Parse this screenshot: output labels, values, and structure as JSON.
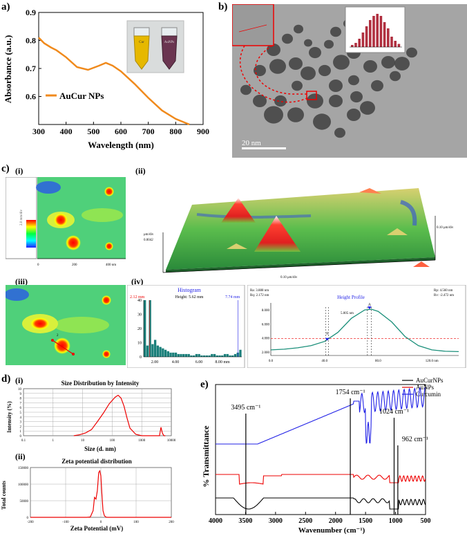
{
  "panels": {
    "a": "a)",
    "b": "b)",
    "c": "c)",
    "d": "d)",
    "e": "e)"
  },
  "subpanels": {
    "c_i": "(i)",
    "c_ii": "(ii)",
    "c_iii": "(iii)",
    "c_iv": "(iv)",
    "d_i": "(i)",
    "d_ii": "(ii)"
  },
  "chart_data": [
    {
      "id": "uvvis",
      "type": "line",
      "xlabel": "Wavelength (nm)",
      "ylabel": "Absorbance (a.u.)",
      "xlim": [
        300,
        900
      ],
      "ylim": [
        0.5,
        0.9
      ],
      "xticks": [
        300,
        400,
        500,
        600,
        700,
        800,
        900
      ],
      "yticks": [
        0.6,
        0.7,
        0.8,
        0.9
      ],
      "legend": "AuCur NPs",
      "legend_position": "center-left",
      "color": "#f08a1c",
      "x": [
        300,
        320,
        345,
        365,
        400,
        440,
        480,
        520,
        545,
        570,
        600,
        650,
        700,
        750,
        800,
        850
      ],
      "y": [
        0.81,
        0.79,
        0.775,
        0.765,
        0.74,
        0.705,
        0.695,
        0.71,
        0.72,
        0.71,
        0.69,
        0.645,
        0.595,
        0.55,
        0.52,
        0.5
      ]
    },
    {
      "id": "histogram",
      "type": "bar",
      "title": "Histogram",
      "annotation": "Height: 5.62 mm",
      "left_cursor": "2.12 mm",
      "right_cursor": "7.74 mm",
      "xticks": [
        "2.00",
        "4.00",
        "6.00",
        "8.00 mm"
      ],
      "yticks": [
        "0",
        "10",
        "20",
        "30",
        "40"
      ],
      "ylim": [
        0,
        40
      ],
      "values": [
        41,
        8,
        41,
        9,
        12,
        8,
        7,
        6,
        5,
        4,
        3,
        3,
        3,
        2,
        2,
        2,
        2,
        2,
        1,
        1,
        2,
        2,
        1,
        1,
        1,
        1,
        2,
        2,
        1,
        1,
        1,
        2,
        2,
        1,
        1,
        2,
        3,
        5
      ]
    },
    {
      "id": "height_profile",
      "type": "line",
      "title": "Height Profile",
      "stats_left": [
        "Ra: 3.888 nm",
        "Rq: 2.172 nm"
      ],
      "stats_right": [
        "Rp: 4.560 nm",
        "Rv: -2.472 nm"
      ],
      "marker": "A",
      "peak_label": "5.005 nm",
      "xticks": [
        "0.0",
        "40.0",
        "80.0",
        "120.0 nm"
      ],
      "yticks": [
        "2.000",
        "4.000",
        "6.000",
        "8.000"
      ],
      "xlim": [
        0,
        140
      ],
      "ylim": [
        1.5,
        9
      ],
      "x": [
        0,
        10,
        20,
        30,
        40,
        50,
        60,
        70,
        75,
        80,
        90,
        100,
        110,
        120,
        130,
        140
      ],
      "y": [
        2.3,
        2.4,
        2.6,
        2.9,
        3.5,
        4.8,
        6.8,
        8.0,
        8.1,
        7.8,
        6.3,
        4.2,
        2.9,
        2.3,
        2.1,
        2.05
      ]
    },
    {
      "id": "dls_size",
      "type": "line",
      "title": "Size Distribution by Intensity",
      "xlabel": "Size (d. nm)",
      "ylabel": "Intensity (%)",
      "xticks": [
        "0.1",
        "1",
        "10",
        "100",
        "1000",
        "10000"
      ],
      "yticks": [
        "0",
        "1",
        "2",
        "3",
        "4",
        "5",
        "6",
        "7",
        "8",
        "9",
        "10"
      ],
      "xlim_log": [
        -1,
        4
      ],
      "ylim": [
        0,
        10
      ],
      "x_log": [
        0.7,
        0.9,
        1.1,
        1.3,
        1.5,
        1.7,
        1.9,
        2.1,
        2.2,
        2.3,
        2.4,
        2.5,
        2.6,
        2.8,
        3.0,
        3.4,
        3.6,
        3.65,
        3.7,
        3.75,
        3.8
      ],
      "y": [
        0,
        0.2,
        0.6,
        1.3,
        3.0,
        4.8,
        6.8,
        8.2,
        8.6,
        8.0,
        6.3,
        3.8,
        1.6,
        0.3,
        0,
        0,
        0,
        1.8,
        0.5,
        0,
        0
      ]
    },
    {
      "id": "zeta",
      "type": "line",
      "title": "Zeta potential distribution",
      "xlabel": "Zeta Potential (mV)",
      "ylabel": "Total counts",
      "xticks": [
        "-200",
        "-100",
        "0",
        "100",
        "200"
      ],
      "yticks": [
        "0",
        "50000",
        "100000",
        "150000"
      ],
      "xlim": [
        -200,
        200
      ],
      "ylim": [
        0,
        150000
      ],
      "x": [
        -200,
        -40,
        -30,
        -22,
        -18,
        -14,
        -10,
        -6,
        -3,
        0,
        3,
        6,
        10,
        14,
        18,
        30,
        200
      ],
      "y": [
        0,
        0,
        1000,
        20000,
        60000,
        55000,
        80000,
        135000,
        140000,
        125000,
        70000,
        20000,
        5000,
        1000,
        0,
        0,
        0
      ]
    },
    {
      "id": "ftir",
      "type": "line",
      "xlabel": "Wavenumber (cm⁻¹)",
      "ylabel": "% Transmittance",
      "xticks": [
        "4000",
        "3500",
        "3000",
        "2500",
        "2000",
        "1500",
        "1000",
        "500"
      ],
      "xlim": [
        4000,
        500
      ],
      "annotations": [
        "3495 cm⁻¹",
        "1754 cm⁻¹",
        "1024 cm⁻¹",
        "962 cm⁻¹"
      ],
      "annotation_x": [
        3495,
        1754,
        1024,
        962
      ],
      "series": [
        {
          "name": "AuCurNPs",
          "color": "#000000"
        },
        {
          "name": "AuNPs",
          "color": "#e00000"
        },
        {
          "name": "Curcumin",
          "color": "#1f1fe6"
        }
      ]
    }
  ],
  "tem": {
    "scale_label": "20 nm"
  },
  "vials": {
    "left": "Cur",
    "right": "AuNPs"
  },
  "afm": {
    "scale_text": "2.0 mm/div",
    "zunit": "μm/div",
    "zval": "0.0042",
    "xunit": "0.10 μm/div",
    "yunit": "0.10 μm/div",
    "xaxis_label": "400 nm",
    "xaxis_zero": "0",
    "xaxis_mid": "200",
    "profile_marker": "2"
  }
}
